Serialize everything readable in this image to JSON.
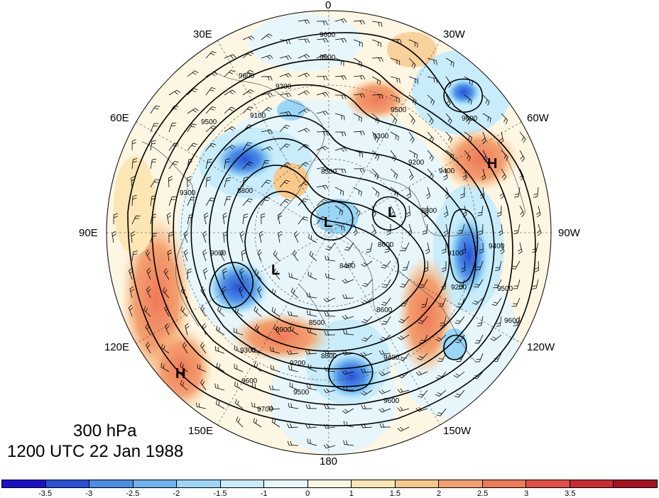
{
  "caption": {
    "level": "300 hPa",
    "datetime": "1200 UTC 22 Jan 1988"
  },
  "longitude_labels": {
    "deg0": "0",
    "deg30w": "30W",
    "deg60w": "60W",
    "deg90w": "90W",
    "deg120w": "120W",
    "deg150w": "150W",
    "deg180": "180",
    "deg150e": "150E",
    "deg120e": "120E",
    "deg90e": "90E",
    "deg60e": "60E",
    "deg30e": "30E"
  },
  "centers": {
    "low_1": "L",
    "low_2": "L",
    "low_3": "L",
    "high_1": "H",
    "high_2": "H"
  },
  "contour_labels": {
    "c9600_top": "9600",
    "c9500_top": "9500",
    "c9300_top": "9300",
    "c9100_left": "9100",
    "c9500_left": "9500",
    "c9600_left": "9600",
    "c9300_left": "9300",
    "c9000_left": "9000",
    "c8800_left": "8800",
    "c8500_mid": "8500",
    "c9500_ne": "9500",
    "c9300_ne": "9300",
    "c9200_ne": "9200",
    "c9400_ne": "9400",
    "c9600_ne": "9600",
    "c8800_e": "8800",
    "c9400_e": "9400",
    "c9100_e": "9100",
    "c9200_e": "9200",
    "c9500_e": "9500",
    "c9600_e": "9600",
    "c8900_s": "8900",
    "c9200_s": "9200",
    "c9300_s": "9300",
    "c9600_s": "9600",
    "c9500_s": "9500",
    "c9700_s": "9700",
    "c8600_s": "8600",
    "c8500_s": "8500",
    "c8800_s": "8800",
    "c9400_s": "9400",
    "c9600_se": "9600",
    "c8400_c": "8400",
    "c8600_c": "8600"
  },
  "colorbar": {
    "colors": [
      "#1a10cc",
      "#2a52d8",
      "#4a8ee6",
      "#6fb2f0",
      "#9ad6f6",
      "#c8ecfa",
      "#e6f6fb",
      "#fdf6e2",
      "#fbe6b4",
      "#f8c98a",
      "#f3a070",
      "#ee7a58",
      "#e54e46",
      "#cc2a33",
      "#a8101f"
    ],
    "tick_labels": [
      "-3.5",
      "-3",
      "-2.5",
      "-2",
      "-1.5",
      "-1",
      "0",
      "1",
      "1.5",
      "2",
      "2.5",
      "3",
      "3.5"
    ]
  }
}
